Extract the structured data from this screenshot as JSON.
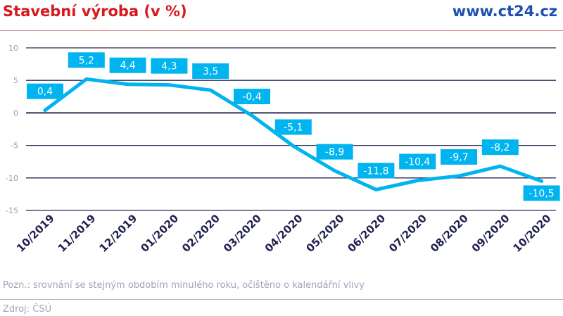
{
  "header": {
    "title": "Stavební výroba (v %)",
    "brand": "www.ct24.cz"
  },
  "footer": {
    "note": "Pozn.: srovnání se stejným obdobím minulého roku, očištěno o kalendářní vlivy",
    "source": "Zdroj: ČSÚ"
  },
  "chart_data": {
    "type": "line",
    "title": "Stavební výroba (v %)",
    "categories": [
      "10/2019",
      "11/2019",
      "12/2019",
      "01/2020",
      "02/2020",
      "03/2020",
      "04/2020",
      "05/2020",
      "06/2020",
      "07/2020",
      "08/2020",
      "09/2020",
      "10/2020"
    ],
    "values": [
      0.4,
      5.2,
      4.4,
      4.3,
      3.5,
      -0.4,
      -5.1,
      -8.9,
      -11.8,
      -10.4,
      -9.7,
      -8.2,
      -10.5
    ],
    "data_labels": [
      "0,4",
      "5,2",
      "4,4",
      "4,3",
      "3,5",
      "-0,4",
      "-5,1",
      "-8,9",
      "-11,8",
      "-10,4",
      "-9,7",
      "-8,2",
      "-10,5"
    ],
    "yticks": [
      10,
      5,
      0,
      -5,
      -10,
      -15
    ],
    "ylim": [
      -15,
      10
    ],
    "grid": true,
    "legend": "none",
    "colors": {
      "line": "#00b4ef",
      "label_bg": "#00b4ef",
      "grid": "#2b2b55",
      "axis_text": "#1f1f4f",
      "title": "#d7191f",
      "brand": "#1f4fb0"
    }
  }
}
